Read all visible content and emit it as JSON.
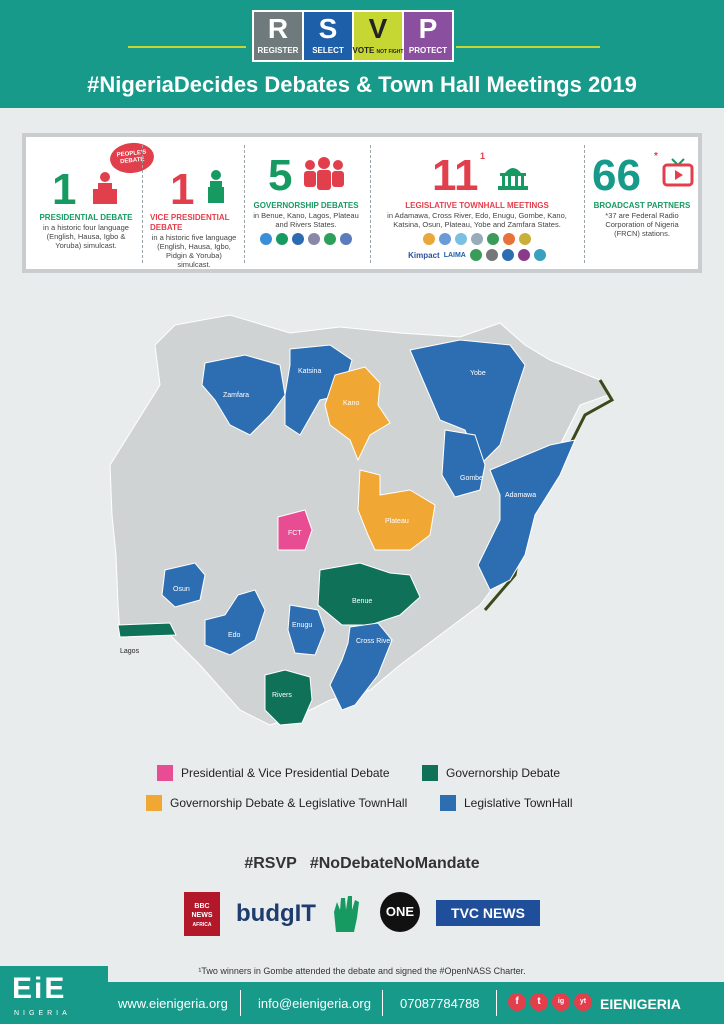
{
  "header": {
    "rsvp": [
      {
        "letter": "R",
        "word": "REGISTER",
        "color": "#6e7a7c"
      },
      {
        "letter": "S",
        "word": "SELECT",
        "color": "#1d5fa8"
      },
      {
        "letter": "V",
        "word": "VOTE",
        "sub": "NOT FIGHT",
        "color": "#c6d734"
      },
      {
        "letter": "P",
        "word": "PROTECT",
        "color": "#8b4f9f"
      }
    ],
    "title": "#NigeriaDecides Debates & Town Hall Meetings 2019"
  },
  "stats": {
    "presidential": {
      "number": "1",
      "badge": "PEOPLE'S DEBATE",
      "heading": "PRESIDENTIAL DEBATE",
      "desc": "in a historic four language (English, Hausa, Igbo & Yoruba) simulcast."
    },
    "vice": {
      "number": "1",
      "heading": "VICE PRESIDENTIAL DEBATE",
      "desc": "in a historic five language (English, Hausa, Igbo, Pidgin & Yoruba) simulcast."
    },
    "governorship": {
      "number": "5",
      "heading": "GOVERNORSHIP DEBATES",
      "desc": "in Benue, Kano, Lagos, Plateau and Rivers States."
    },
    "legislative": {
      "number": "11",
      "sup": "1",
      "heading": "LEGISLATIVE TOWNHALL MEETINGS",
      "desc": "in Adamawa, Cross River, Edo, Enugu, Gombe, Kano, Katsina, Osun, Plateau, Yobe and Zamfara States.",
      "logo_texts": [
        "Kimpact",
        "LAIMA"
      ]
    },
    "broadcast": {
      "number": "66",
      "sup": "*",
      "heading": "BROADCAST PARTNERS",
      "desc": "*37 are Federal Radio Corporation of Nigeria (FRCN) stations."
    }
  },
  "map": {
    "states": {
      "zamfara": "Zamfara",
      "katsina": "Katsina",
      "kano": "Kano",
      "yobe": "Yobe",
      "gombe": "Gombe",
      "adamawa": "Adamawa",
      "fct": "FCT",
      "plateau": "Plateau",
      "osun": "Osun",
      "benue": "Benue",
      "edo": "Edo",
      "enugu": "Enugu",
      "cross_river": "Cross River",
      "lagos": "Lagos",
      "rivers": "Rivers"
    },
    "colors": {
      "base": "#d0d3d4",
      "pink": "#e84c93",
      "green": "#0f7158",
      "orange": "#f1a733",
      "blue": "#2d6eb3"
    }
  },
  "legend": [
    {
      "label": "Presidential & Vice Presidential Debate",
      "color": "#e84c93"
    },
    {
      "label": "Governorship Debate",
      "color": "#0f7158"
    },
    {
      "label": "Governorship Debate & Legislative TownHall",
      "color": "#f1a733"
    },
    {
      "label": "Legislative TownHall",
      "color": "#2d6eb3"
    }
  ],
  "hashtags": "#RSVP   #NoDebateNoMandate",
  "partners": {
    "bbc": "BBC NEWS",
    "bbc_sub": "AFRICA",
    "budgit": "budgIT",
    "one": "ONE",
    "tvc": "TVC NEWS"
  },
  "footnote": "¹Two winners in Gombe attended the debate and signed the #OpenNASS Charter.",
  "footer": {
    "logo": "EiE",
    "logo_sub": "NIGERIA",
    "website": "www.eienigeria.org",
    "email": "info@eienigeria.org",
    "phone": "07087784788",
    "handle": "EIENIGERIA",
    "social": [
      "f",
      "t",
      "ig",
      "yt"
    ]
  }
}
